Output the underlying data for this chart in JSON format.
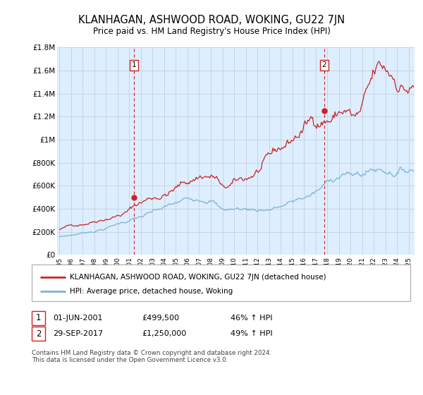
{
  "title": "KLANHAGAN, ASHWOOD ROAD, WOKING, GU22 7JN",
  "subtitle": "Price paid vs. HM Land Registry's House Price Index (HPI)",
  "legend_line1": "KLANHAGAN, ASHWOOD ROAD, WOKING, GU22 7JN (detached house)",
  "legend_line2": "HPI: Average price, detached house, Woking",
  "annotation1_date": "01-JUN-2001",
  "annotation1_price": "£499,500",
  "annotation1_hpi": "46% ↑ HPI",
  "annotation1_year": 2001.42,
  "annotation1_value": 499500,
  "annotation2_date": "29-SEP-2017",
  "annotation2_price": "£1,250,000",
  "annotation2_hpi": "49% ↑ HPI",
  "annotation2_year": 2017.75,
  "annotation2_value": 1250000,
  "hpi_color": "#7ab3d4",
  "price_color": "#cc2222",
  "vline_color": "#cc2222",
  "chart_bg": "#ddeeff",
  "ylim": [
    0,
    1800000
  ],
  "yticks": [
    0,
    200000,
    400000,
    600000,
    800000,
    1000000,
    1200000,
    1400000,
    1600000,
    1800000
  ],
  "ytick_labels": [
    "£0",
    "£200K",
    "£400K",
    "£600K",
    "£800K",
    "£1M",
    "£1.2M",
    "£1.4M",
    "£1.6M",
    "£1.8M"
  ],
  "xlim_start": 1994.8,
  "xlim_end": 2025.5,
  "xticks": [
    1995,
    1996,
    1997,
    1998,
    1999,
    2000,
    2001,
    2002,
    2003,
    2004,
    2005,
    2006,
    2007,
    2008,
    2009,
    2010,
    2011,
    2012,
    2013,
    2014,
    2015,
    2016,
    2017,
    2018,
    2019,
    2020,
    2021,
    2022,
    2023,
    2024,
    2025
  ],
  "background_color": "#ffffff",
  "grid_color": "#c0c8d8",
  "footnote": "Contains HM Land Registry data © Crown copyright and database right 2024.\nThis data is licensed under the Open Government Licence v3.0."
}
